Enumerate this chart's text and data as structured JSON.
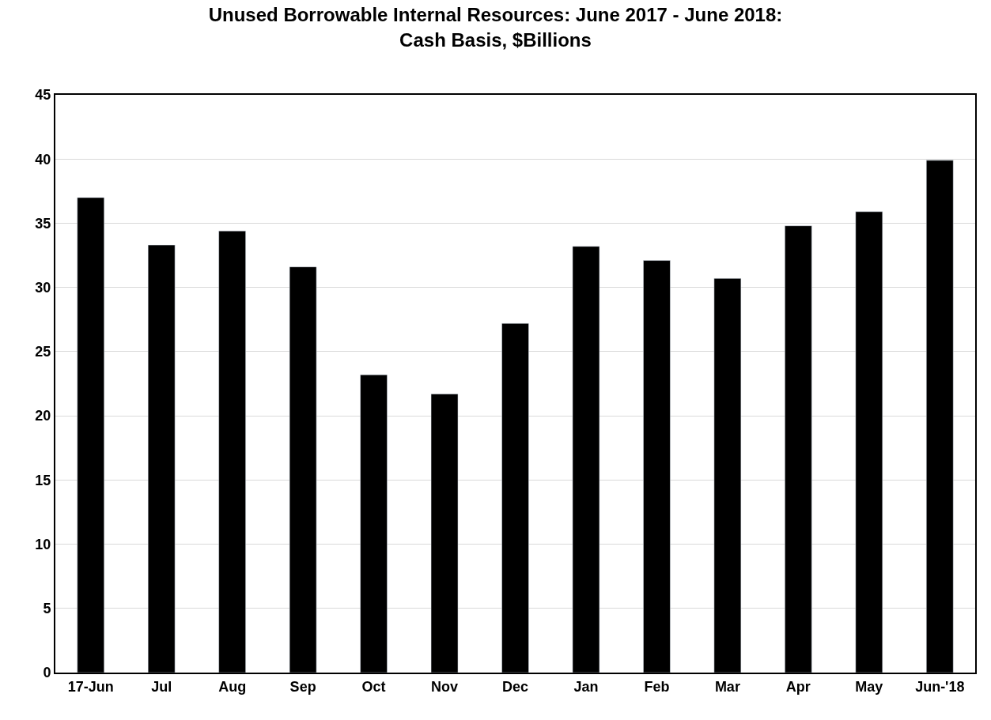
{
  "chart_data": {
    "type": "bar",
    "title": "Unused Borrowable Internal Resources: June 2017 - June 2018:\nCash Basis, $Billions",
    "categories": [
      "17-Jun",
      "Jul",
      "Aug",
      "Sep",
      "Oct",
      "Nov",
      "Dec",
      "Jan",
      "Feb",
      "Mar",
      "Apr",
      "May",
      "Jun-'18"
    ],
    "values": [
      37.0,
      33.3,
      34.4,
      31.6,
      23.2,
      21.7,
      27.2,
      33.2,
      32.1,
      30.7,
      34.8,
      35.9,
      39.9
    ],
    "color": "#000000",
    "ylim": [
      0,
      45
    ],
    "yticks": [
      0,
      5,
      10,
      15,
      20,
      25,
      30,
      35,
      40,
      45
    ],
    "grid": "y"
  }
}
